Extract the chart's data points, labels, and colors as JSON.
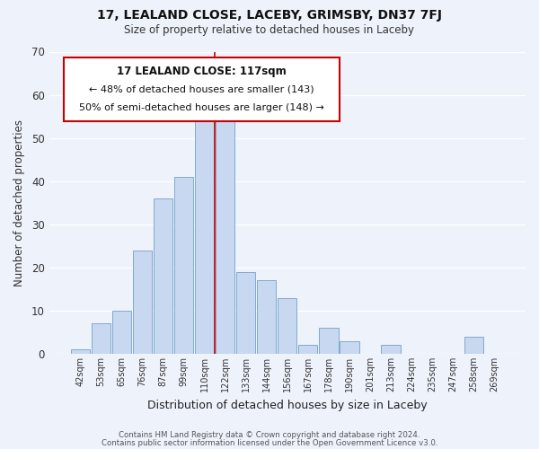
{
  "title": "17, LEALAND CLOSE, LACEBY, GRIMSBY, DN37 7FJ",
  "subtitle": "Size of property relative to detached houses in Laceby",
  "xlabel": "Distribution of detached houses by size in Laceby",
  "ylabel": "Number of detached properties",
  "bar_color": "#c8d8f0",
  "bar_edge_color": "#7faad0",
  "bin_labels": [
    "42sqm",
    "53sqm",
    "65sqm",
    "76sqm",
    "87sqm",
    "99sqm",
    "110sqm",
    "122sqm",
    "133sqm",
    "144sqm",
    "156sqm",
    "167sqm",
    "178sqm",
    "190sqm",
    "201sqm",
    "213sqm",
    "224sqm",
    "235sqm",
    "247sqm",
    "258sqm",
    "269sqm"
  ],
  "bar_heights": [
    1,
    7,
    10,
    24,
    36,
    41,
    56,
    54,
    19,
    17,
    13,
    2,
    6,
    3,
    0,
    2,
    0,
    0,
    0,
    4,
    0
  ],
  "ylim": [
    0,
    70
  ],
  "yticks": [
    0,
    10,
    20,
    30,
    40,
    50,
    60,
    70
  ],
  "annotation_box_title": "17 LEALAND CLOSE: 117sqm",
  "annotation_line1": "← 48% of detached houses are smaller (143)",
  "annotation_line2": "50% of semi-detached houses are larger (148) →",
  "annotation_box_color": "#ffffff",
  "annotation_box_edge_color": "#cc0000",
  "red_line_bar_index": 6,
  "footer_line1": "Contains HM Land Registry data © Crown copyright and database right 2024.",
  "footer_line2": "Contains public sector information licensed under the Open Government Licence v3.0.",
  "background_color": "#eef2fb",
  "grid_color": "#ffffff"
}
